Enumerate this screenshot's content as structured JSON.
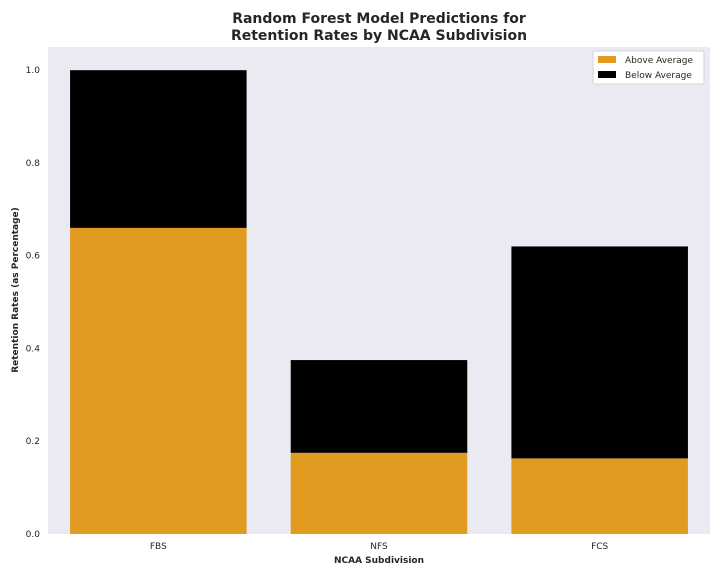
{
  "chart_data": {
    "type": "bar",
    "stacked": true,
    "title": [
      "Random Forest Model Predictions for",
      "Retention Rates by NCAA Subdivision"
    ],
    "xlabel": "NCAA Subdivision",
    "ylabel": "Retention Rates (as Percentage)",
    "categories": [
      "FBS",
      "NFS",
      "FCS"
    ],
    "series": [
      {
        "name": "Above Average",
        "color": "#e09b20",
        "values": [
          0.66,
          0.175,
          0.163
        ]
      },
      {
        "name": "Below Average",
        "color": "#000000",
        "values": [
          0.34,
          0.2,
          0.457
        ]
      }
    ],
    "ylim": [
      0,
      1.05
    ],
    "yticks": [
      "0.0",
      "0.2",
      "0.4",
      "0.6",
      "0.8",
      "1.0"
    ],
    "grid": false,
    "legend": "top-right",
    "background": "#eaeaf2"
  }
}
